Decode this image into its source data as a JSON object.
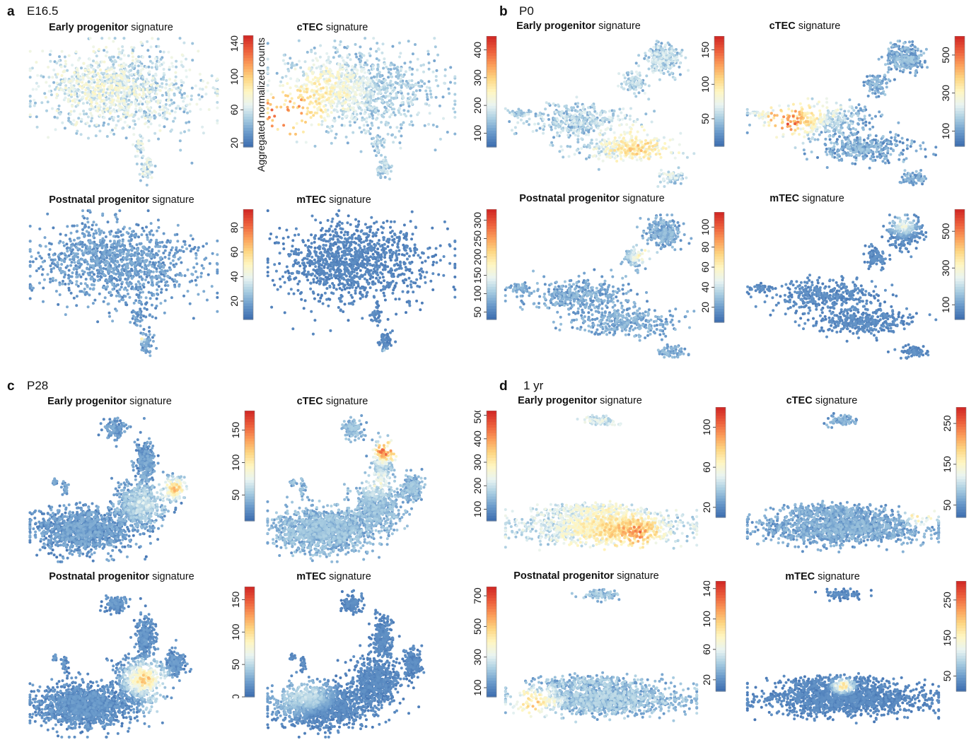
{
  "figure": {
    "panels": [
      {
        "letter": "a",
        "stage": "E16.5"
      },
      {
        "letter": "b",
        "stage": "P0"
      },
      {
        "letter": "c",
        "stage": "P28"
      },
      {
        "letter": "d",
        "stage": "1 yr"
      }
    ],
    "signature_names": {
      "early": "Early progenitor",
      "ctec": "cTEC",
      "postnatal": "Postnatal progenitor",
      "mtec": "mTEC"
    },
    "title_suffix": " signature",
    "colorbar_label": "Aggregated normalized counts",
    "colors": {
      "low": "#4f7dbd",
      "mid": "#fdfccb",
      "high": "#d73027",
      "scale": [
        "#3f6fb0",
        "#6b9bcb",
        "#a9cde1",
        "#e9f4f2",
        "#fff6c2",
        "#fdd581",
        "#fb9d59",
        "#ed5f3c",
        "#d22b26"
      ]
    }
  },
  "chart_data": [
    {
      "type": "scatter",
      "panel": "a",
      "signature": "Early progenitor",
      "colorbar_ticks": [
        "20",
        "60",
        "100",
        "140"
      ],
      "range": [
        15,
        150
      ]
    },
    {
      "type": "scatter",
      "panel": "a",
      "signature": "cTEC",
      "colorbar_ticks": [],
      "range": [
        0,
        0
      ]
    },
    {
      "type": "scatter",
      "panel": "a",
      "signature": "Postnatal progenitor",
      "colorbar_ticks": [
        "20",
        "40",
        "60",
        "80"
      ],
      "range": [
        5,
        95
      ]
    },
    {
      "type": "scatter",
      "panel": "a",
      "signature": "mTEC",
      "colorbar_ticks": [],
      "range": [
        0,
        0
      ]
    },
    {
      "type": "scatter",
      "panel": "b",
      "signature": "Early progenitor",
      "colorbar_ticks": [
        "100",
        "200",
        "300",
        "400"
      ],
      "range": [
        50,
        450
      ]
    },
    {
      "type": "scatter",
      "panel": "b",
      "signature": "cTEC",
      "colorbar_ticks": [
        "50",
        "100",
        "150"
      ],
      "range": [
        10,
        170
      ]
    },
    {
      "type": "scatter",
      "panel": "b",
      "signature": "cTEC",
      "colorbar_ticks": [
        "100",
        "300",
        "500"
      ],
      "range": [
        20,
        600
      ]
    },
    {
      "type": "scatter",
      "panel": "b",
      "signature": "Postnatal progenitor",
      "colorbar_ticks": [
        "50",
        "100",
        "150",
        "200",
        "250",
        "300"
      ],
      "range": [
        30,
        330
      ]
    },
    {
      "type": "scatter",
      "panel": "b",
      "signature": "mTEC",
      "colorbar_ticks": [
        "20",
        "40",
        "60",
        "80",
        "100"
      ],
      "range": [
        5,
        115
      ]
    },
    {
      "type": "scatter",
      "panel": "b",
      "signature": "mTEC",
      "colorbar_ticks": [
        "100",
        "300",
        "500"
      ],
      "range": [
        20,
        620
      ]
    },
    {
      "type": "scatter",
      "panel": "c",
      "signature": "Early progenitor",
      "colorbar_ticks": [
        "50",
        "100",
        "150"
      ],
      "range": [
        10,
        180
      ]
    },
    {
      "type": "scatter",
      "panel": "c",
      "signature": "cTEC",
      "colorbar_ticks": [],
      "range": [
        0,
        0
      ]
    },
    {
      "type": "scatter",
      "panel": "c",
      "signature": "Postnatal progenitor",
      "colorbar_ticks": [
        "0",
        "50",
        "100",
        "150"
      ],
      "range": [
        0,
        170
      ]
    },
    {
      "type": "scatter",
      "panel": "c",
      "signature": "mTEC",
      "colorbar_ticks": [],
      "range": [
        0,
        0
      ]
    },
    {
      "type": "scatter",
      "panel": "d",
      "signature": "Early progenitor",
      "colorbar_ticks": [
        "100",
        "200",
        "300",
        "400",
        "500"
      ],
      "range": [
        50,
        520
      ]
    },
    {
      "type": "scatter",
      "panel": "d",
      "signature": "cTEC",
      "colorbar_ticks": [
        "20",
        "60",
        "100"
      ],
      "range": [
        10,
        120
      ]
    },
    {
      "type": "scatter",
      "panel": "d",
      "signature": "cTEC",
      "colorbar_ticks": [
        "50",
        "150",
        "250"
      ],
      "range": [
        20,
        290
      ]
    },
    {
      "type": "scatter",
      "panel": "d",
      "signature": "Postnatal progenitor",
      "colorbar_ticks": [
        "100",
        "300",
        "500",
        "700"
      ],
      "range": [
        40,
        760
      ]
    },
    {
      "type": "scatter",
      "panel": "d",
      "signature": "mTEC",
      "colorbar_ticks": [
        "20",
        "60",
        "100",
        "140"
      ],
      "range": [
        5,
        150
      ]
    },
    {
      "type": "scatter",
      "panel": "d",
      "signature": "mTEC",
      "colorbar_ticks": [
        "50",
        "150",
        "250"
      ],
      "range": [
        10,
        300
      ]
    }
  ]
}
